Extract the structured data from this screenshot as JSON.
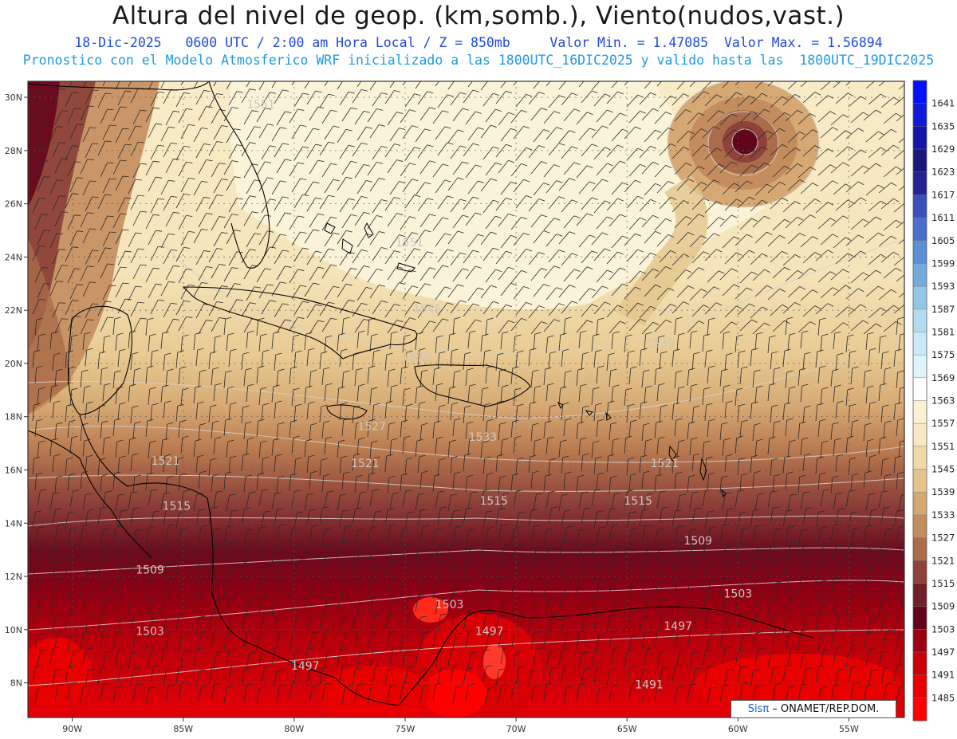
{
  "header": {
    "title": "Altura del nivel de geop. (km,somb.), Viento(nudos,vast.)",
    "date": "18-Dic-2025",
    "time": "0600 UTC / 2:00 am Hora Local / Z = 850mb",
    "min_label": "Valor Min. = 1.47085",
    "max_label": "Valor Max. = 1.56894",
    "model_line": "Pronostico con el Modelo Atmosferico WRF inicializado a las 1800UTC_16DIC2025 y valido hasta las  1800UTC_19DIC2025"
  },
  "map": {
    "lat_labels": [
      "30N",
      "28N",
      "26N",
      "24N",
      "22N",
      "20N",
      "18N",
      "16N",
      "14N",
      "12N",
      "10N",
      "8N"
    ],
    "lat_values": [
      30,
      28,
      26,
      24,
      22,
      20,
      18,
      16,
      14,
      12,
      10,
      8
    ],
    "lon_labels": [
      "90W",
      "85W",
      "80W",
      "75W",
      "70W",
      "65W",
      "60W",
      "55W"
    ],
    "lon_values": [
      -90,
      -85,
      -80,
      -75,
      -70,
      -65,
      -60,
      -55
    ],
    "lon_range": [
      -92,
      -52.5
    ],
    "lat_range": [
      6.7,
      30.6
    ],
    "contour_labels": [
      {
        "text": "1551",
        "lon": -81.5,
        "lat": 29.6
      },
      {
        "text": "1551",
        "lon": -74.8,
        "lat": 24.4
      },
      {
        "text": "1545",
        "lon": -74.0,
        "lat": 21.9
      },
      {
        "text": "1539",
        "lon": -63.5,
        "lat": 20.6
      },
      {
        "text": "1539",
        "lon": -74.5,
        "lat": 20.1
      },
      {
        "text": "1527",
        "lon": -76.5,
        "lat": 17.5
      },
      {
        "text": "1533",
        "lon": -71.5,
        "lat": 17.1
      },
      {
        "text": "1521",
        "lon": -85.8,
        "lat": 16.2
      },
      {
        "text": "1521",
        "lon": -76.8,
        "lat": 16.1
      },
      {
        "text": "1521",
        "lon": -63.3,
        "lat": 16.1
      },
      {
        "text": "1515",
        "lon": -85.3,
        "lat": 14.5
      },
      {
        "text": "1515",
        "lon": -71.0,
        "lat": 14.7
      },
      {
        "text": "1515",
        "lon": -64.5,
        "lat": 14.7
      },
      {
        "text": "1509",
        "lon": -61.8,
        "lat": 13.2
      },
      {
        "text": "1509",
        "lon": -86.5,
        "lat": 12.1
      },
      {
        "text": "1503",
        "lon": -60.0,
        "lat": 11.2
      },
      {
        "text": "1503",
        "lon": -73.0,
        "lat": 10.8
      },
      {
        "text": "1503",
        "lon": -86.5,
        "lat": 9.8
      },
      {
        "text": "1497",
        "lon": -71.2,
        "lat": 9.8
      },
      {
        "text": "1497",
        "lon": -62.7,
        "lat": 10.0
      },
      {
        "text": "1497",
        "lon": -79.5,
        "lat": 8.5
      },
      {
        "text": "1491",
        "lon": -64.0,
        "lat": 7.8
      }
    ]
  },
  "colorbar": {
    "labels": [
      "1641",
      "1635",
      "1629",
      "1623",
      "1617",
      "1611",
      "1605",
      "1599",
      "1593",
      "1587",
      "1581",
      "1575",
      "1569",
      "1563",
      "1557",
      "1551",
      "1545",
      "1539",
      "1533",
      "1527",
      "1521",
      "1515",
      "1509",
      "1503",
      "1497",
      "1491",
      "1485"
    ],
    "colors": [
      "#0010ff",
      "#0f1ad8",
      "#1414a8",
      "#18187a",
      "#232392",
      "#3850b8",
      "#4a6fc8",
      "#5a90d2",
      "#72acdc",
      "#93c7e6",
      "#b2dcee",
      "#c8eaf6",
      "#dff4fa",
      "#ffffff",
      "#fbf1d2",
      "#f7e8c0",
      "#efd9a9",
      "#e4c48b",
      "#d6a974",
      "#c48d5e",
      "#aa6c49",
      "#8e4239",
      "#731f27",
      "#63051a",
      "#9a0010",
      "#c80008",
      "#e80000",
      "#ff0000"
    ]
  },
  "credit": {
    "sis": "Sis",
    "pi": "π",
    "text": " – ONAMET/REP.DOM."
  }
}
